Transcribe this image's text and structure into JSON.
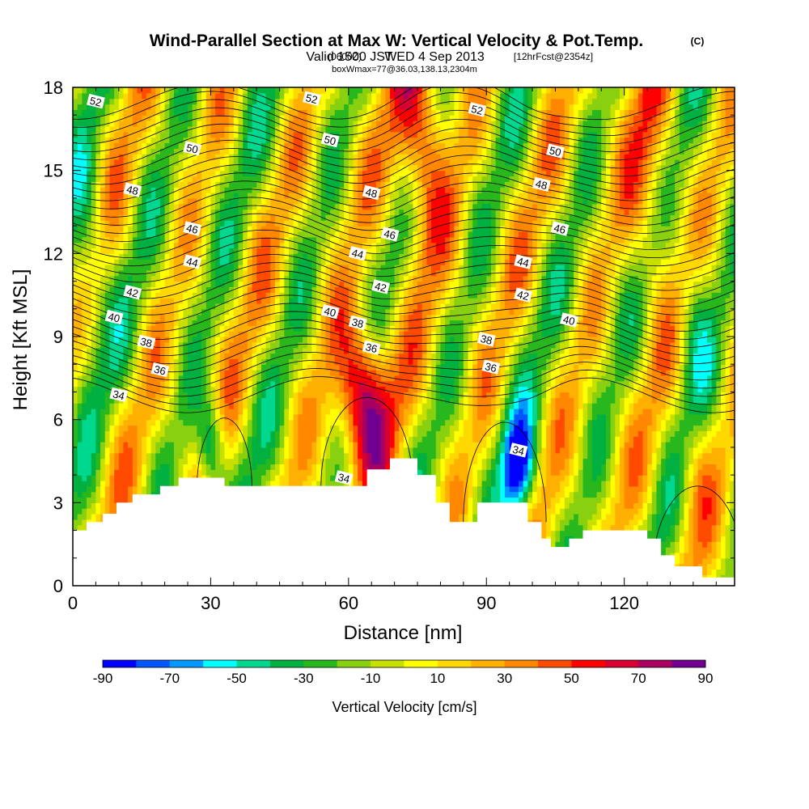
{
  "chart_data": {
    "type": "heatmap",
    "title": "Wind-Parallel Section at Max W: Vertical Velocity & Pot.Temp.",
    "title_mark": "(C)",
    "subtitle_valid": "Valid 1500 JST",
    "subtitle_z": "(0600Z)",
    "subtitle_date": "WED 4 Sep 2013",
    "subtitle_fcst": "[12hrFcst@2354z]",
    "subtitle_box": "boxWmax=77@36.03,138.13,2304m",
    "xlabel": "Distance [nm]",
    "ylabel": "Height [Kft MSL]",
    "xlim": [
      0,
      144
    ],
    "ylim": [
      0,
      18
    ],
    "xticks": [
      0,
      30,
      60,
      90,
      120
    ],
    "yticks": [
      0,
      3,
      6,
      9,
      12,
      15,
      18
    ],
    "colorbar": {
      "label": "Vertical Velocity [cm/s]",
      "ticks": [
        -90,
        -70,
        -50,
        -30,
        -10,
        10,
        30,
        50,
        70,
        90
      ],
      "colors": [
        "#0000ff",
        "#0055ff",
        "#0099ff",
        "#00ffff",
        "#00d890",
        "#00b040",
        "#28b81e",
        "#88d010",
        "#c8e000",
        "#ffff00",
        "#ffd800",
        "#ffb000",
        "#ff8800",
        "#ff4a00",
        "#ff0000",
        "#d80030",
        "#a80060",
        "#700090"
      ]
    },
    "velocity_features": [
      {
        "x": 63,
        "h": 6.8,
        "sx": 4,
        "sh": 2,
        "value": 90
      },
      {
        "x": 76,
        "h": 16,
        "sx": 4,
        "sh": 3,
        "value": 60
      },
      {
        "x": 97,
        "h": 4.2,
        "sx": 2.5,
        "sh": 1.3,
        "value": -80
      },
      {
        "x": 30,
        "h": 5,
        "sx": 2,
        "sh": 1.2,
        "value": -55
      },
      {
        "x": 3,
        "h": 12,
        "sx": 3,
        "sh": 3,
        "value": -30
      },
      {
        "x": 135,
        "h": 9,
        "sx": 3,
        "sh": 3,
        "value": -30
      },
      {
        "x": 126,
        "h": 15,
        "sx": 4,
        "sh": 3,
        "value": 35
      },
      {
        "x": 135,
        "h": 4,
        "sx": 3,
        "sh": 2,
        "value": 30
      }
    ],
    "theta_contour_levels": [
      34,
      36,
      38,
      40,
      42,
      44,
      46,
      48,
      50,
      52
    ],
    "theta_labels": [
      {
        "text": "52",
        "x": 5,
        "h": 17.5
      },
      {
        "text": "52",
        "x": 52,
        "h": 17.6
      },
      {
        "text": "52",
        "x": 88,
        "h": 17.2
      },
      {
        "text": "50",
        "x": 26,
        "h": 15.8
      },
      {
        "text": "50",
        "x": 56,
        "h": 16.1
      },
      {
        "text": "50",
        "x": 105,
        "h": 15.7
      },
      {
        "text": "48",
        "x": 13,
        "h": 14.3
      },
      {
        "text": "48",
        "x": 65,
        "h": 14.2
      },
      {
        "text": "48",
        "x": 102,
        "h": 14.5
      },
      {
        "text": "46",
        "x": 26,
        "h": 12.9
      },
      {
        "text": "46",
        "x": 69,
        "h": 12.7
      },
      {
        "text": "46",
        "x": 106,
        "h": 12.9
      },
      {
        "text": "44",
        "x": 26,
        "h": 11.7
      },
      {
        "text": "44",
        "x": 62,
        "h": 12.0
      },
      {
        "text": "44",
        "x": 98,
        "h": 11.7
      },
      {
        "text": "42",
        "x": 13,
        "h": 10.6
      },
      {
        "text": "42",
        "x": 67,
        "h": 10.8
      },
      {
        "text": "42",
        "x": 98,
        "h": 10.5
      },
      {
        "text": "40",
        "x": 9,
        "h": 9.7
      },
      {
        "text": "40",
        "x": 56,
        "h": 9.9
      },
      {
        "text": "40",
        "x": 108,
        "h": 9.6
      },
      {
        "text": "38",
        "x": 16,
        "h": 8.8
      },
      {
        "text": "38",
        "x": 62,
        "h": 9.5
      },
      {
        "text": "38",
        "x": 90,
        "h": 8.9
      },
      {
        "text": "36",
        "x": 19,
        "h": 7.8
      },
      {
        "text": "36",
        "x": 65,
        "h": 8.6
      },
      {
        "text": "36",
        "x": 91,
        "h": 7.9
      },
      {
        "text": "34",
        "x": 10,
        "h": 6.9
      },
      {
        "text": "34",
        "x": 59,
        "h": 3.9
      },
      {
        "text": "34",
        "x": 97,
        "h": 4.9
      }
    ],
    "terrain": [
      [
        0,
        2.0
      ],
      [
        3,
        2.0
      ],
      [
        3,
        2.3
      ],
      [
        6.5,
        2.3
      ],
      [
        6.5,
        2.6
      ],
      [
        9.5,
        2.6
      ],
      [
        9.5,
        3.0
      ],
      [
        13,
        3.0
      ],
      [
        13,
        3.3
      ],
      [
        19,
        3.3
      ],
      [
        19,
        3.6
      ],
      [
        23,
        3.6
      ],
      [
        23,
        3.9
      ],
      [
        33,
        3.9
      ],
      [
        33,
        3.6
      ],
      [
        64,
        3.6
      ],
      [
        64,
        4.2
      ],
      [
        69,
        4.2
      ],
      [
        69,
        4.6
      ],
      [
        75,
        4.6
      ],
      [
        75,
        4.0
      ],
      [
        79,
        4.0
      ],
      [
        79,
        3.0
      ],
      [
        82,
        3.0
      ],
      [
        82,
        2.3
      ],
      [
        88,
        2.3
      ],
      [
        88,
        3.0
      ],
      [
        99,
        3.0
      ],
      [
        99,
        2.3
      ],
      [
        102,
        2.3
      ],
      [
        102,
        1.7
      ],
      [
        104,
        1.7
      ],
      [
        104,
        1.4
      ],
      [
        108,
        1.4
      ],
      [
        108,
        1.7
      ],
      [
        111,
        1.7
      ],
      [
        111,
        2.0
      ],
      [
        125,
        2.0
      ],
      [
        125,
        1.7
      ],
      [
        128,
        1.7
      ],
      [
        128,
        1.1
      ],
      [
        131,
        1.1
      ],
      [
        131,
        0.7
      ],
      [
        137,
        0.7
      ],
      [
        137,
        0.3
      ],
      [
        144,
        0.3
      ]
    ]
  }
}
